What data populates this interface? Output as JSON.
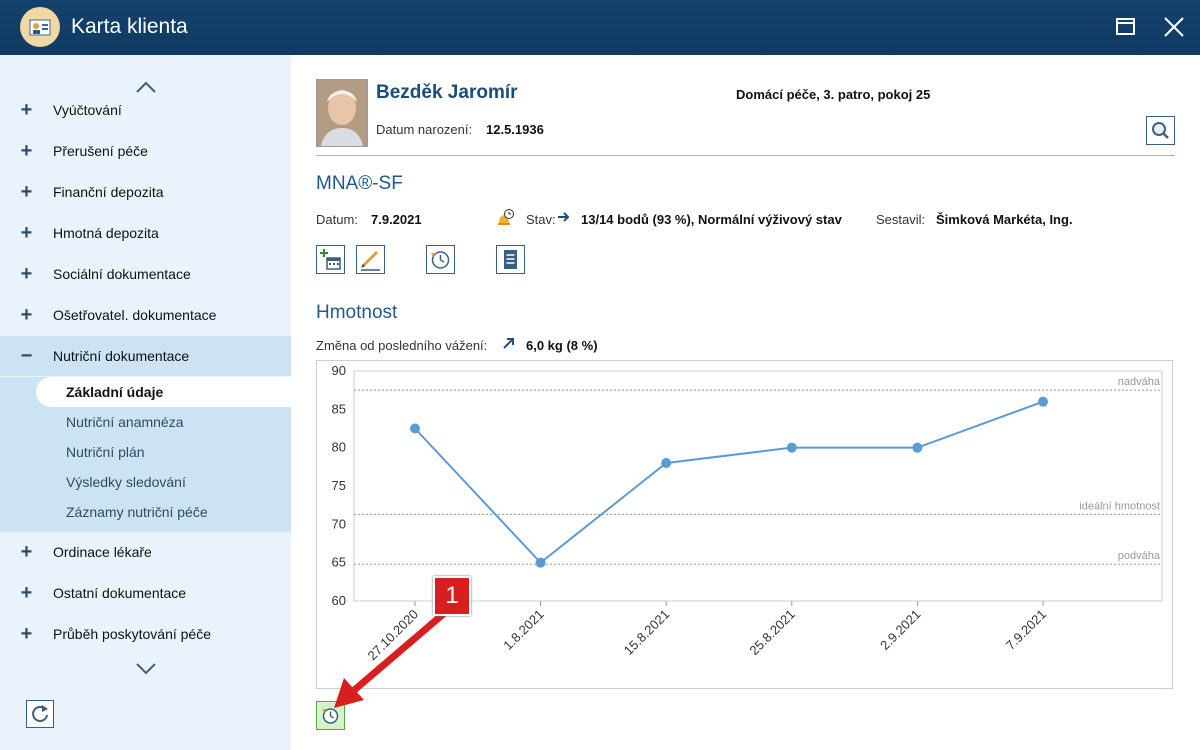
{
  "window": {
    "title": "Karta klienta"
  },
  "sidebar": {
    "items": [
      {
        "label": "Vyúčtování",
        "expander": "+"
      },
      {
        "label": "Přerušení péče",
        "expander": "+"
      },
      {
        "label": "Finanční depozita",
        "expander": "+"
      },
      {
        "label": "Hmotná depozita",
        "expander": "+"
      },
      {
        "label": "Sociální dokumentace",
        "expander": "+"
      },
      {
        "label": "Ošetřovatel. dokumentace",
        "expander": "+"
      },
      {
        "label": "Nutriční dokumentace",
        "expander": "−"
      },
      {
        "label": "Ordinace lékaře",
        "expander": "+"
      },
      {
        "label": "Ostatní dokumentace",
        "expander": "+"
      },
      {
        "label": "Průběh poskytování péče",
        "expander": "+"
      }
    ],
    "subitems": [
      {
        "label": "Základní údaje"
      },
      {
        "label": "Nutriční anamnéza"
      },
      {
        "label": "Nutriční plán"
      },
      {
        "label": "Výsledky sledování"
      },
      {
        "label": "Záznamy nutriční péče"
      }
    ]
  },
  "patient": {
    "name": "Bezděk Jaromír",
    "dob_label": "Datum narození:",
    "dob": "12.5.1936",
    "location": "Domácí péče, 3. patro, pokoj 25"
  },
  "mna": {
    "title": "MNA®-SF",
    "date_label": "Datum:",
    "date": "7.9.2021",
    "status_label": "Stav:",
    "status": "13/14 bodů (93 %), Normální výživový stav",
    "author_label": "Sestavil:",
    "author": "Šimková Markéta, Ing."
  },
  "weight": {
    "title": "Hmotnost",
    "change_label": "Změna od posledního vážení:",
    "change": "6,0 kg (8 %)"
  },
  "chart_data": {
    "type": "line",
    "categories": [
      "27.10.2020",
      "1.8.2021",
      "15.8.2021",
      "25.8.2021",
      "2.9.2021",
      "7.9.2021"
    ],
    "values": [
      82.5,
      65,
      78,
      80,
      80,
      86
    ],
    "ylim": [
      60,
      90
    ],
    "yticks": [
      60,
      65,
      70,
      75,
      80,
      85,
      90
    ],
    "reference_lines": [
      {
        "label": "nadváha",
        "value": 87.5
      },
      {
        "label": "ideální hmotnost",
        "value": 71.3
      },
      {
        "label": "podváha",
        "value": 64.8
      }
    ],
    "grid": false,
    "series_color": "#5b9bd5"
  },
  "annotation": {
    "badge": "1",
    "color": "#d81e1e"
  }
}
